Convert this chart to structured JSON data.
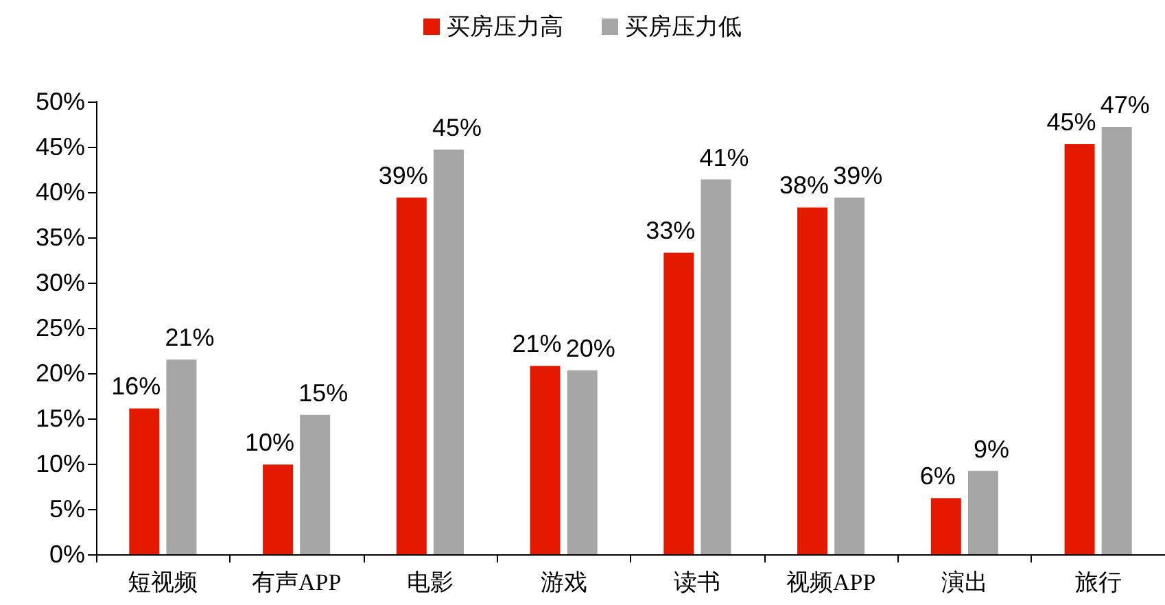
{
  "chart_data": {
    "type": "bar",
    "categories": [
      "短视频",
      "有声APP",
      "电影",
      "游戏",
      "读书",
      "视频APP",
      "演出",
      "旅行"
    ],
    "series": [
      {
        "name": "买房压力高",
        "color": "#e41a00",
        "values": [
          16.1,
          9.9,
          39.4,
          20.8,
          33.3,
          38.3,
          6.2,
          45.3
        ],
        "value_labels": [
          "16%",
          "10%",
          "39%",
          "21%",
          "33%",
          "38%",
          "6%",
          "45%"
        ]
      },
      {
        "name": "买房压力低",
        "color": "#a6a6a6",
        "values": [
          21.5,
          15.4,
          44.7,
          20.3,
          41.4,
          39.4,
          9.2,
          47.2
        ],
        "value_labels": [
          "21%",
          "15%",
          "45%",
          "20%",
          "41%",
          "39%",
          "9%",
          "47%"
        ]
      }
    ],
    "ylim": [
      0,
      50
    ],
    "yticks": [
      {
        "value": 0,
        "label": "0%"
      },
      {
        "value": 5,
        "label": "5%"
      },
      {
        "value": 10,
        "label": "10%"
      },
      {
        "value": 15,
        "label": "15%"
      },
      {
        "value": 20,
        "label": "20%"
      },
      {
        "value": 25,
        "label": "25%"
      },
      {
        "value": 30,
        "label": "30%"
      },
      {
        "value": 35,
        "label": "35%"
      },
      {
        "value": 40,
        "label": "40%"
      },
      {
        "value": 45,
        "label": "45%"
      },
      {
        "value": 50,
        "label": "50%"
      }
    ],
    "grid": false,
    "legend": "top"
  }
}
